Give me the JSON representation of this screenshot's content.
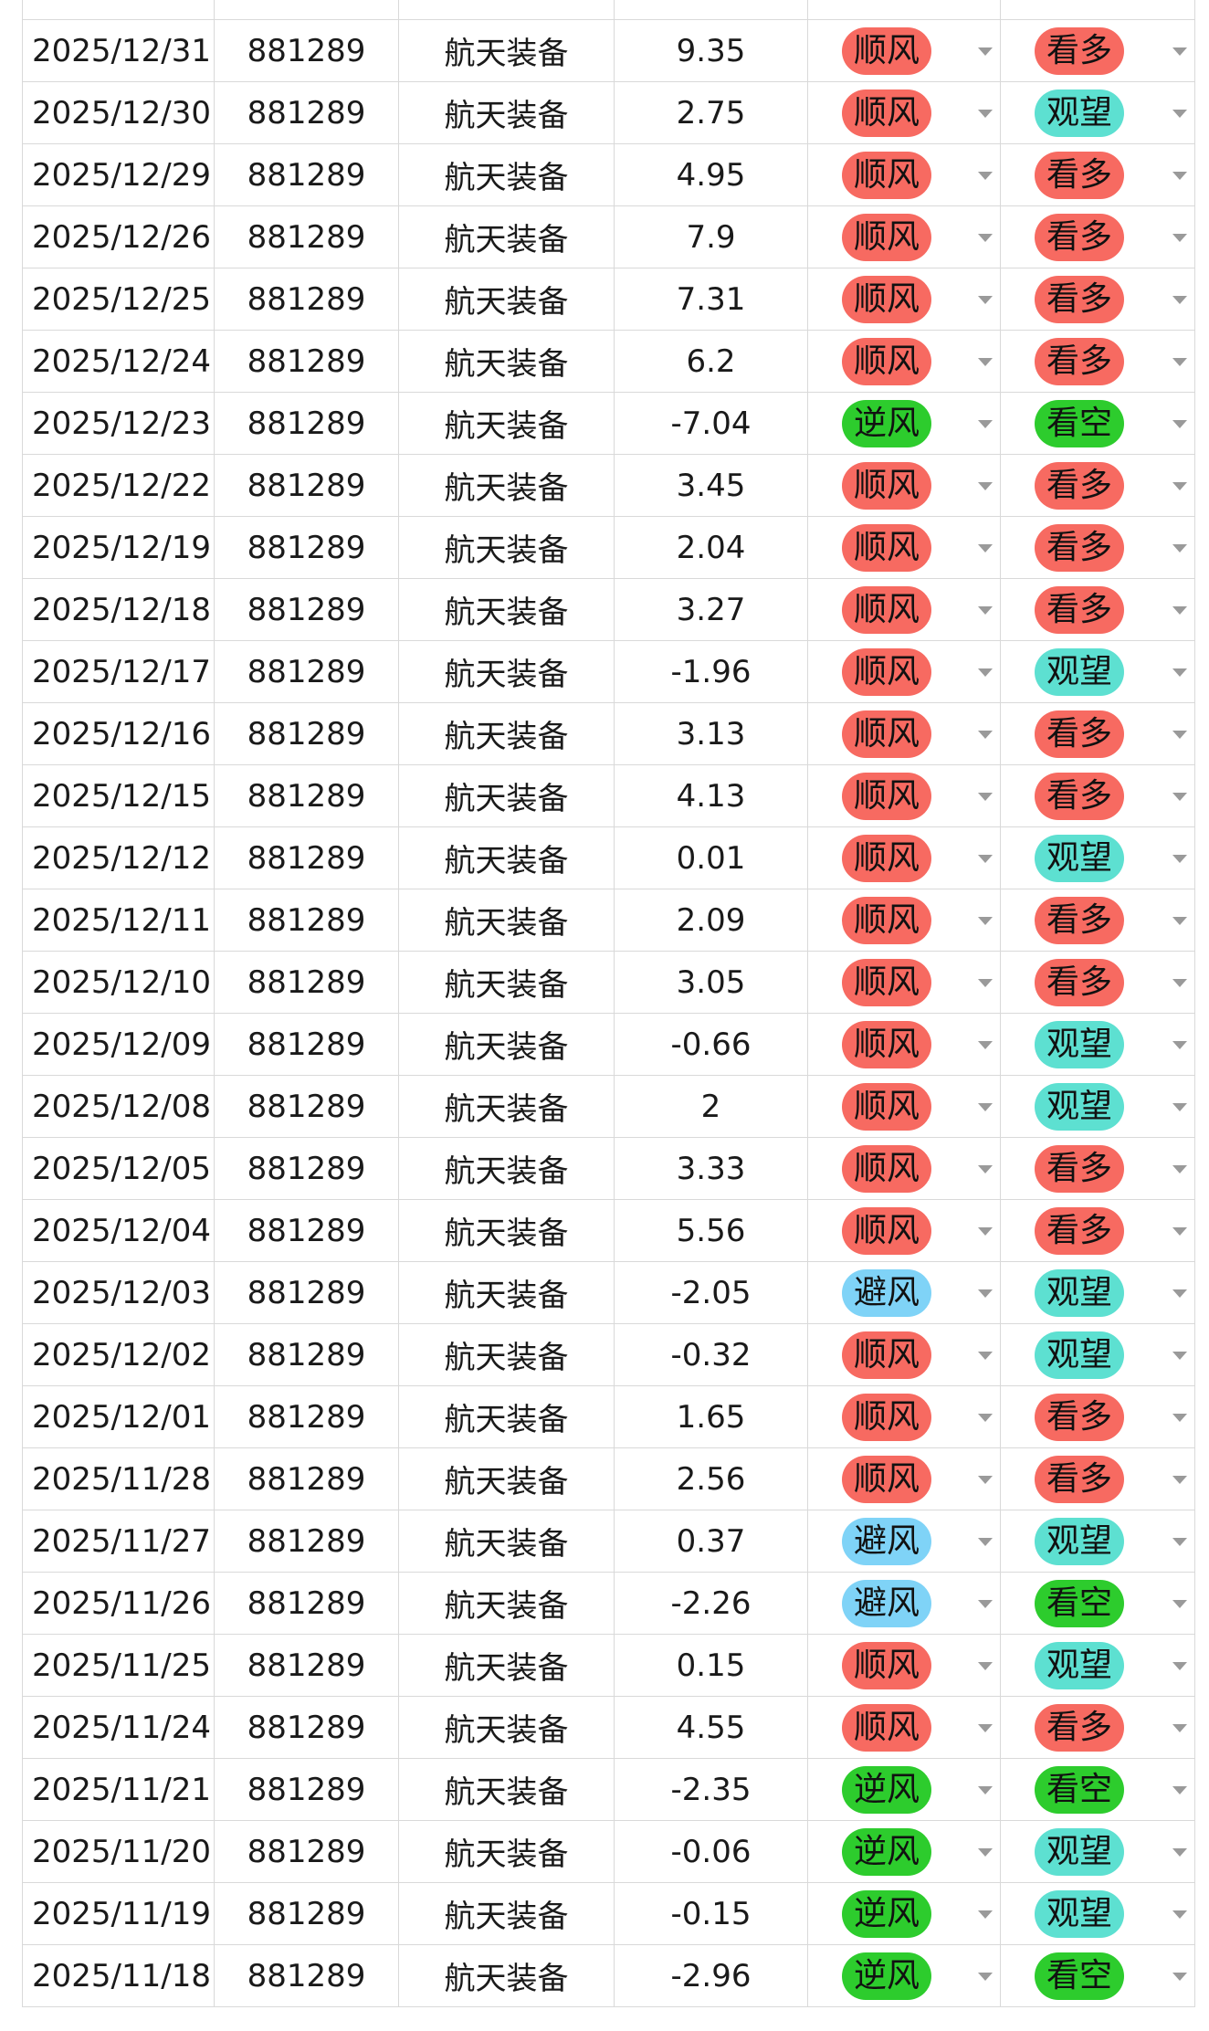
{
  "colors": {
    "顺风": "#f76a61",
    "逆风": "#2dcc2d",
    "避风": "#7fd3f7",
    "看多": "#f76a61",
    "观望": "#5de0d1",
    "看空": "#2dcc2d"
  },
  "icons": {
    "dropdown": "caret-down-icon"
  },
  "rows": [
    {
      "date": "2025/12/31",
      "code": "881289",
      "name": "航天装备",
      "change": "9.35",
      "wind": "顺风",
      "view": "看多"
    },
    {
      "date": "2025/12/30",
      "code": "881289",
      "name": "航天装备",
      "change": "2.75",
      "wind": "顺风",
      "view": "观望"
    },
    {
      "date": "2025/12/29",
      "code": "881289",
      "name": "航天装备",
      "change": "4.95",
      "wind": "顺风",
      "view": "看多"
    },
    {
      "date": "2025/12/26",
      "code": "881289",
      "name": "航天装备",
      "change": "7.9",
      "wind": "顺风",
      "view": "看多"
    },
    {
      "date": "2025/12/25",
      "code": "881289",
      "name": "航天装备",
      "change": "7.31",
      "wind": "顺风",
      "view": "看多"
    },
    {
      "date": "2025/12/24",
      "code": "881289",
      "name": "航天装备",
      "change": "6.2",
      "wind": "顺风",
      "view": "看多"
    },
    {
      "date": "2025/12/23",
      "code": "881289",
      "name": "航天装备",
      "change": "-7.04",
      "wind": "逆风",
      "view": "看空"
    },
    {
      "date": "2025/12/22",
      "code": "881289",
      "name": "航天装备",
      "change": "3.45",
      "wind": "顺风",
      "view": "看多"
    },
    {
      "date": "2025/12/19",
      "code": "881289",
      "name": "航天装备",
      "change": "2.04",
      "wind": "顺风",
      "view": "看多"
    },
    {
      "date": "2025/12/18",
      "code": "881289",
      "name": "航天装备",
      "change": "3.27",
      "wind": "顺风",
      "view": "看多"
    },
    {
      "date": "2025/12/17",
      "code": "881289",
      "name": "航天装备",
      "change": "-1.96",
      "wind": "顺风",
      "view": "观望"
    },
    {
      "date": "2025/12/16",
      "code": "881289",
      "name": "航天装备",
      "change": "3.13",
      "wind": "顺风",
      "view": "看多"
    },
    {
      "date": "2025/12/15",
      "code": "881289",
      "name": "航天装备",
      "change": "4.13",
      "wind": "顺风",
      "view": "看多"
    },
    {
      "date": "2025/12/12",
      "code": "881289",
      "name": "航天装备",
      "change": "0.01",
      "wind": "顺风",
      "view": "观望"
    },
    {
      "date": "2025/12/11",
      "code": "881289",
      "name": "航天装备",
      "change": "2.09",
      "wind": "顺风",
      "view": "看多"
    },
    {
      "date": "2025/12/10",
      "code": "881289",
      "name": "航天装备",
      "change": "3.05",
      "wind": "顺风",
      "view": "看多"
    },
    {
      "date": "2025/12/09",
      "code": "881289",
      "name": "航天装备",
      "change": "-0.66",
      "wind": "顺风",
      "view": "观望"
    },
    {
      "date": "2025/12/08",
      "code": "881289",
      "name": "航天装备",
      "change": "2",
      "wind": "顺风",
      "view": "观望"
    },
    {
      "date": "2025/12/05",
      "code": "881289",
      "name": "航天装备",
      "change": "3.33",
      "wind": "顺风",
      "view": "看多"
    },
    {
      "date": "2025/12/04",
      "code": "881289",
      "name": "航天装备",
      "change": "5.56",
      "wind": "顺风",
      "view": "看多"
    },
    {
      "date": "2025/12/03",
      "code": "881289",
      "name": "航天装备",
      "change": "-2.05",
      "wind": "避风",
      "view": "观望"
    },
    {
      "date": "2025/12/02",
      "code": "881289",
      "name": "航天装备",
      "change": "-0.32",
      "wind": "顺风",
      "view": "观望"
    },
    {
      "date": "2025/12/01",
      "code": "881289",
      "name": "航天装备",
      "change": "1.65",
      "wind": "顺风",
      "view": "看多"
    },
    {
      "date": "2025/11/28",
      "code": "881289",
      "name": "航天装备",
      "change": "2.56",
      "wind": "顺风",
      "view": "看多"
    },
    {
      "date": "2025/11/27",
      "code": "881289",
      "name": "航天装备",
      "change": "0.37",
      "wind": "避风",
      "view": "观望"
    },
    {
      "date": "2025/11/26",
      "code": "881289",
      "name": "航天装备",
      "change": "-2.26",
      "wind": "避风",
      "view": "看空"
    },
    {
      "date": "2025/11/25",
      "code": "881289",
      "name": "航天装备",
      "change": "0.15",
      "wind": "顺风",
      "view": "观望"
    },
    {
      "date": "2025/11/24",
      "code": "881289",
      "name": "航天装备",
      "change": "4.55",
      "wind": "顺风",
      "view": "看多"
    },
    {
      "date": "2025/11/21",
      "code": "881289",
      "name": "航天装备",
      "change": "-2.35",
      "wind": "逆风",
      "view": "看空"
    },
    {
      "date": "2025/11/20",
      "code": "881289",
      "name": "航天装备",
      "change": "-0.06",
      "wind": "逆风",
      "view": "观望"
    },
    {
      "date": "2025/11/19",
      "code": "881289",
      "name": "航天装备",
      "change": "-0.15",
      "wind": "逆风",
      "view": "观望"
    },
    {
      "date": "2025/11/18",
      "code": "881289",
      "name": "航天装备",
      "change": "-2.96",
      "wind": "逆风",
      "view": "看空"
    }
  ]
}
